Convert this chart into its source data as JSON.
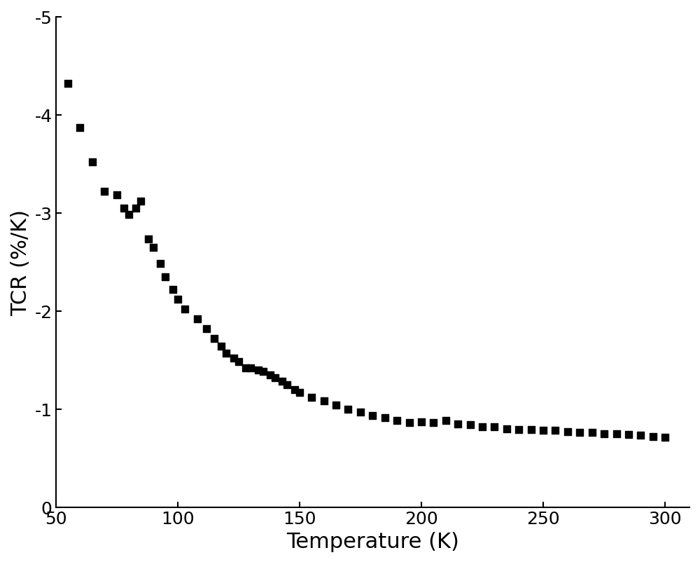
{
  "x": [
    55,
    60,
    65,
    70,
    75,
    78,
    80,
    83,
    85,
    88,
    90,
    93,
    95,
    98,
    100,
    103,
    108,
    112,
    115,
    118,
    120,
    123,
    125,
    128,
    130,
    133,
    135,
    138,
    140,
    143,
    145,
    148,
    150,
    155,
    160,
    165,
    170,
    175,
    180,
    185,
    190,
    195,
    200,
    205,
    210,
    215,
    220,
    225,
    230,
    235,
    240,
    245,
    250,
    255,
    260,
    265,
    270,
    275,
    280,
    285,
    290,
    295,
    300
  ],
  "y": [
    -4.32,
    -3.87,
    -3.52,
    -3.22,
    -3.18,
    -3.05,
    -2.98,
    -3.05,
    -3.12,
    -2.73,
    -2.65,
    -2.48,
    -2.35,
    -2.22,
    -2.12,
    -2.02,
    -1.92,
    -1.82,
    -1.72,
    -1.64,
    -1.57,
    -1.52,
    -1.48,
    -1.42,
    -1.42,
    -1.4,
    -1.38,
    -1.35,
    -1.32,
    -1.28,
    -1.25,
    -1.2,
    -1.17,
    -1.12,
    -1.08,
    -1.04,
    -1.0,
    -0.97,
    -0.93,
    -0.91,
    -0.88,
    -0.86,
    -0.87,
    -0.86,
    -0.88,
    -0.85,
    -0.84,
    -0.82,
    -0.82,
    -0.8,
    -0.79,
    -0.79,
    -0.78,
    -0.78,
    -0.77,
    -0.76,
    -0.76,
    -0.75,
    -0.75,
    -0.74,
    -0.73,
    -0.72,
    -0.71
  ],
  "xlabel": "Temperature (K)",
  "ylabel": "TCR (%/K)",
  "xlim": [
    50,
    310
  ],
  "ylim_bottom": -5,
  "ylim_top": 0,
  "xticks": [
    50,
    100,
    150,
    200,
    250,
    300
  ],
  "yticks": [
    0,
    -1,
    -2,
    -3,
    -4,
    -5
  ],
  "ytick_labels": [
    "0",
    "-1",
    "-2",
    "-3",
    "-4",
    "-5"
  ],
  "marker": "s",
  "marker_color": "black",
  "marker_size": 7,
  "xlabel_fontsize": 22,
  "ylabel_fontsize": 22,
  "tick_fontsize": 18,
  "background_color": "#ffffff"
}
